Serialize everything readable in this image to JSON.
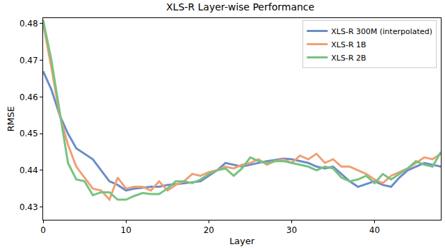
{
  "chart_data": {
    "type": "line",
    "title": "XLS-R Layer-wise Performance",
    "x_label": "Layer",
    "y_label": "RMSE",
    "x": [
      0,
      1,
      2,
      3,
      4,
      5,
      6,
      7,
      8,
      9,
      10,
      11,
      12,
      13,
      14,
      15,
      16,
      17,
      18,
      19,
      20,
      21,
      22,
      23,
      24,
      25,
      26,
      27,
      28,
      29,
      30,
      31,
      32,
      33,
      34,
      35,
      36,
      37,
      38,
      39,
      40,
      41,
      42,
      43,
      44,
      45,
      46,
      47,
      48
    ],
    "series": [
      {
        "name": "XLS-R 300M (interpolated)",
        "color": "#6b8cc7",
        "values": [
          0.467,
          0.462,
          0.455,
          0.45,
          0.446,
          0.4445,
          0.443,
          0.44,
          0.437,
          0.436,
          0.4345,
          0.435,
          0.4352,
          0.4355,
          0.4355,
          0.436,
          0.4362,
          0.4365,
          0.4367,
          0.437,
          0.4385,
          0.44,
          0.442,
          0.4415,
          0.441,
          0.4415,
          0.442,
          0.4425,
          0.4428,
          0.4432,
          0.443,
          0.4425,
          0.442,
          0.441,
          0.4405,
          0.441,
          0.439,
          0.437,
          0.4355,
          0.4362,
          0.437,
          0.436,
          0.4355,
          0.438,
          0.44,
          0.441,
          0.442,
          0.4415,
          0.441
        ]
      },
      {
        "name": "XLS-R 1B",
        "color": "#ef9f76",
        "values": [
          0.48,
          0.468,
          0.455,
          0.447,
          0.441,
          0.438,
          0.435,
          0.4345,
          0.432,
          0.438,
          0.435,
          0.4355,
          0.4355,
          0.4345,
          0.437,
          0.4345,
          0.436,
          0.437,
          0.439,
          0.4385,
          0.4395,
          0.44,
          0.441,
          0.4405,
          0.4415,
          0.442,
          0.443,
          0.4415,
          0.4425,
          0.443,
          0.442,
          0.444,
          0.443,
          0.4445,
          0.442,
          0.443,
          0.441,
          0.441,
          0.44,
          0.439,
          0.4375,
          0.4365,
          0.4385,
          0.4395,
          0.4405,
          0.442,
          0.4435,
          0.443,
          0.4445
        ]
      },
      {
        "name": "XLS-R 2B",
        "color": "#77c27f",
        "values": [
          0.481,
          0.47,
          0.456,
          0.442,
          0.4375,
          0.437,
          0.4332,
          0.434,
          0.434,
          0.432,
          0.432,
          0.433,
          0.4338,
          0.4335,
          0.4335,
          0.435,
          0.437,
          0.437,
          0.4365,
          0.4375,
          0.439,
          0.44,
          0.4405,
          0.4385,
          0.4405,
          0.4435,
          0.4425,
          0.442,
          0.4425,
          0.4425,
          0.442,
          0.4415,
          0.441,
          0.44,
          0.441,
          0.4405,
          0.438,
          0.437,
          0.4375,
          0.4385,
          0.4365,
          0.439,
          0.4375,
          0.439,
          0.4405,
          0.4425,
          0.4415,
          0.441,
          0.445
        ]
      }
    ],
    "xlim": [
      0,
      48
    ],
    "ylim": [
      0.4265,
      0.4815
    ],
    "xticks": [
      0,
      10,
      20,
      30,
      40
    ],
    "yticks": [
      0.43,
      0.44,
      0.45,
      0.46,
      0.47,
      0.48
    ],
    "grid": false,
    "legend": "upper right"
  }
}
